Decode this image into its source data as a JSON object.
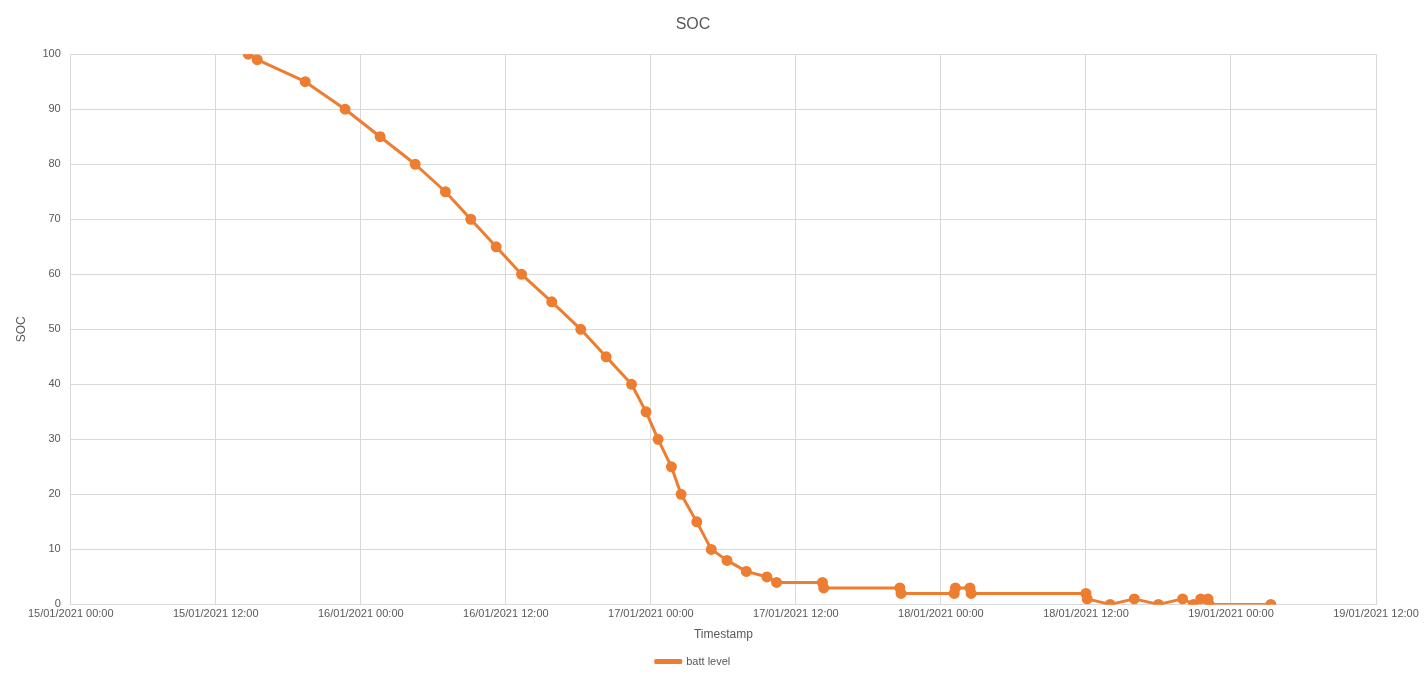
{
  "chart_data": {
    "type": "line",
    "title": "SOC",
    "xlabel": "Timestamp",
    "ylabel": "SOC",
    "xlim": [
      "2021-01-15T00:00",
      "2021-01-19T12:00"
    ],
    "xticks": [
      {
        "value": "2021-01-15T00:00",
        "label": "15/01/2021 00:00"
      },
      {
        "value": "2021-01-15T12:00",
        "label": "15/01/2021 12:00"
      },
      {
        "value": "2021-01-16T00:00",
        "label": "16/01/2021 00:00"
      },
      {
        "value": "2021-01-16T12:00",
        "label": "16/01/2021 12:00"
      },
      {
        "value": "2021-01-17T00:00",
        "label": "17/01/2021 00:00"
      },
      {
        "value": "2021-01-17T12:00",
        "label": "17/01/2021 12:00"
      },
      {
        "value": "2021-01-18T00:00",
        "label": "18/01/2021 00:00"
      },
      {
        "value": "2021-01-18T12:00",
        "label": "18/01/2021 12:00"
      },
      {
        "value": "2021-01-19T00:00",
        "label": "19/01/2021 00:00"
      },
      {
        "value": "2021-01-19T12:00",
        "label": "19/01/2021 12:00"
      }
    ],
    "ylim": [
      0,
      100
    ],
    "yticks": [
      0,
      10,
      20,
      30,
      40,
      50,
      60,
      70,
      80,
      90,
      100
    ],
    "grid": true,
    "legend": "bottom",
    "marker": "circle",
    "line_style": "solid",
    "x": [
      "2021-01-15T14:41",
      "2021-01-15T15:26",
      "2021-01-15T19:24",
      "2021-01-15T22:42",
      "2021-01-16T01:36",
      "2021-01-16T04:30",
      "2021-01-16T07:00",
      "2021-01-16T09:06",
      "2021-01-16T11:12",
      "2021-01-16T13:18",
      "2021-01-16T15:48",
      "2021-01-16T18:12",
      "2021-01-16T20:18",
      "2021-01-16T22:24",
      "2021-01-16T23:36",
      "2021-01-17T00:36",
      "2021-01-17T01:42",
      "2021-01-17T02:30",
      "2021-01-17T03:48",
      "2021-01-17T05:00",
      "2021-01-17T06:18",
      "2021-01-17T07:54",
      "2021-01-17T09:36",
      "2021-01-17T10:24",
      "2021-01-17T14:12",
      "2021-01-17T14:18",
      "2021-01-17T20:36",
      "2021-01-17T20:42",
      "2021-01-18T01:06",
      "2021-01-18T01:12",
      "2021-01-18T02:24",
      "2021-01-18T02:30",
      "2021-01-18T12:00",
      "2021-01-18T12:06",
      "2021-01-18T14:00",
      "2021-01-18T16:00",
      "2021-01-18T18:00",
      "2021-01-18T20:00",
      "2021-01-18T20:54",
      "2021-01-18T21:30",
      "2021-01-18T22:06",
      "2021-01-18T22:12",
      "2021-01-19T03:18"
    ],
    "series": [
      {
        "name": "batt level",
        "color": "#ed7d31",
        "values": [
          100,
          99,
          95,
          90,
          85,
          80,
          75,
          70,
          65,
          60,
          55,
          50,
          45,
          40,
          35,
          30,
          25,
          20,
          15,
          10,
          8,
          6,
          5,
          4,
          4,
          3,
          3,
          2,
          2,
          3,
          3,
          2,
          2,
          1,
          0,
          1,
          0,
          1,
          0,
          1,
          1,
          0,
          0
        ]
      }
    ]
  }
}
